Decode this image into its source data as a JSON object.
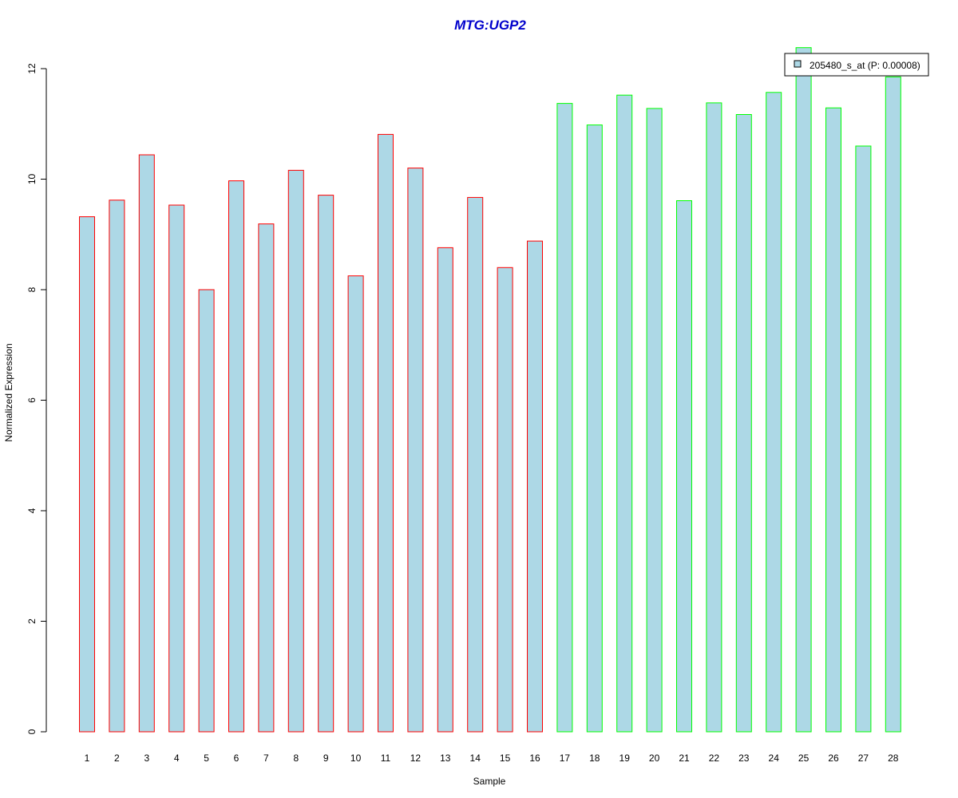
{
  "chart_data": {
    "type": "bar",
    "title": "MTG:UGP2",
    "xlabel": "Sample",
    "ylabel": "Normalized Expression",
    "categories": [
      "1",
      "2",
      "3",
      "4",
      "5",
      "6",
      "7",
      "8",
      "9",
      "10",
      "11",
      "12",
      "13",
      "14",
      "15",
      "16",
      "17",
      "18",
      "19",
      "20",
      "21",
      "22",
      "23",
      "24",
      "25",
      "26",
      "27",
      "28"
    ],
    "series": [
      {
        "name": "205480_s_at (P: 0.00008)",
        "values": [
          9.32,
          9.62,
          10.44,
          9.53,
          8.0,
          9.97,
          9.19,
          10.16,
          9.71,
          8.25,
          10.81,
          10.2,
          8.76,
          9.67,
          8.4,
          8.88,
          11.37,
          10.98,
          11.52,
          11.28,
          9.61,
          11.38,
          11.17,
          11.57,
          12.38,
          11.29,
          10.6,
          11.85
        ]
      }
    ],
    "groups": [
      1,
      1,
      1,
      1,
      1,
      1,
      1,
      1,
      1,
      1,
      1,
      1,
      1,
      1,
      1,
      1,
      2,
      2,
      2,
      2,
      2,
      2,
      2,
      2,
      2,
      2,
      2,
      2
    ],
    "ylim": [
      0,
      12
    ],
    "yticks": [
      0,
      2,
      4,
      6,
      8,
      10,
      12
    ],
    "grid": false,
    "legend_position": "top-right",
    "colors": {
      "bar_fill": "#add8e6",
      "group1_border": "#ff0000",
      "group2_border": "#00ff00",
      "title": "#0000cc",
      "axis": "#000000"
    }
  }
}
